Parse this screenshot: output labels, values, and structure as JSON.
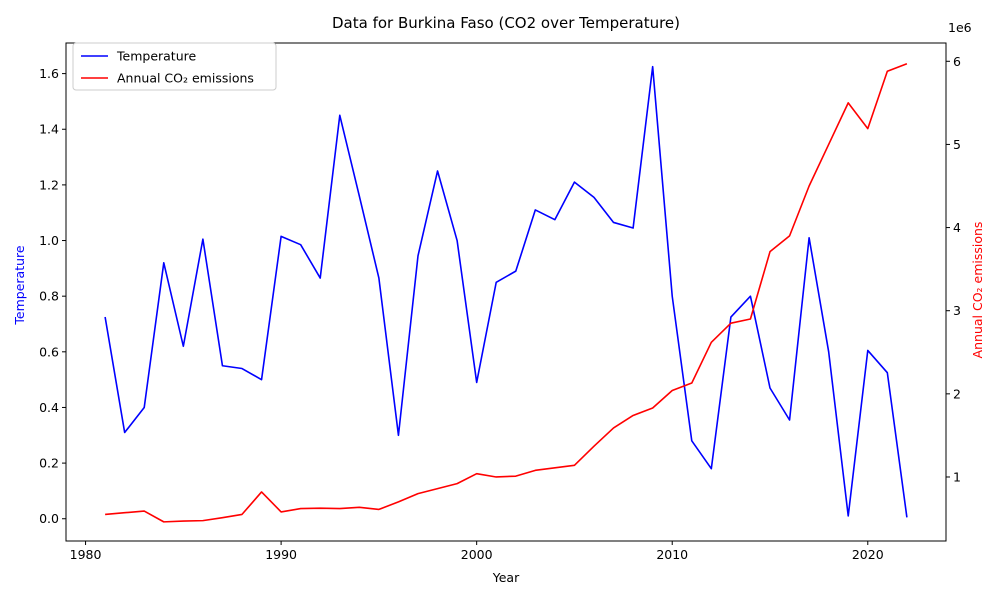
{
  "chart_data": {
    "type": "line",
    "title": "Data for Burkina Faso (CO2 over Temperature)",
    "xlabel": "Year",
    "ylabel_left": "Temperature",
    "ylabel_right": "Annual CO₂ emissions",
    "right_axis_multiplier": "1e6",
    "xlim": [
      1979,
      2024
    ],
    "ylim_left": [
      -0.08,
      1.71
    ],
    "ylim_right": [
      230000,
      6220000
    ],
    "x_ticks": [
      1980,
      1990,
      2000,
      2010,
      2020
    ],
    "y_ticks_left": [
      0.0,
      0.2,
      0.4,
      0.6,
      0.8,
      1.0,
      1.2,
      1.4,
      1.6
    ],
    "y_ticks_left_labels": [
      "0.0",
      "0.2",
      "0.4",
      "0.6",
      "0.8",
      "1.0",
      "1.2",
      "1.4",
      "1.6"
    ],
    "y_ticks_right": [
      1000000,
      2000000,
      3000000,
      4000000,
      5000000,
      6000000
    ],
    "y_ticks_right_labels": [
      "1",
      "2",
      "3",
      "4",
      "5",
      "6"
    ],
    "legend_position": "top-left",
    "colors": {
      "temperature": "#0000ff",
      "co2": "#ff0000",
      "left_axis_label": "#0000ff",
      "right_axis_label": "#ff0000"
    },
    "x": [
      1981,
      1982,
      1983,
      1984,
      1985,
      1986,
      1987,
      1988,
      1989,
      1990,
      1991,
      1992,
      1993,
      1994,
      1995,
      1996,
      1997,
      1998,
      1999,
      2000,
      2001,
      2002,
      2003,
      2004,
      2005,
      2006,
      2007,
      2008,
      2009,
      2010,
      2011,
      2012,
      2013,
      2014,
      2015,
      2016,
      2017,
      2018,
      2019,
      2020,
      2021,
      2022
    ],
    "series": [
      {
        "name": "Temperature",
        "axis": "left",
        "values": [
          0.725,
          0.31,
          0.4,
          0.92,
          0.62,
          1.005,
          0.55,
          0.54,
          0.5,
          1.015,
          0.985,
          0.865,
          1.45,
          1.16,
          0.865,
          0.3,
          0.945,
          1.25,
          1.0,
          0.49,
          0.85,
          0.89,
          1.11,
          1.075,
          1.21,
          1.155,
          1.065,
          1.045,
          1.625,
          0.8,
          0.28,
          0.18,
          0.725,
          0.8,
          0.47,
          0.355,
          1.01,
          0.6,
          0.01,
          0.605,
          0.525,
          0.005
        ]
      },
      {
        "name": "Annual CO₂ emissions",
        "axis": "right",
        "values": [
          550000,
          570000,
          590000,
          460000,
          470000,
          475000,
          510000,
          550000,
          820000,
          580000,
          620000,
          625000,
          620000,
          635000,
          610000,
          700000,
          800000,
          860000,
          920000,
          1040000,
          1000000,
          1010000,
          1080000,
          1110000,
          1140000,
          1370000,
          1590000,
          1740000,
          1830000,
          2040000,
          2130000,
          2620000,
          2850000,
          2900000,
          3710000,
          3900000,
          4500000,
          5000000,
          5500000,
          5190000,
          5880000,
          5970000
        ]
      }
    ]
  }
}
